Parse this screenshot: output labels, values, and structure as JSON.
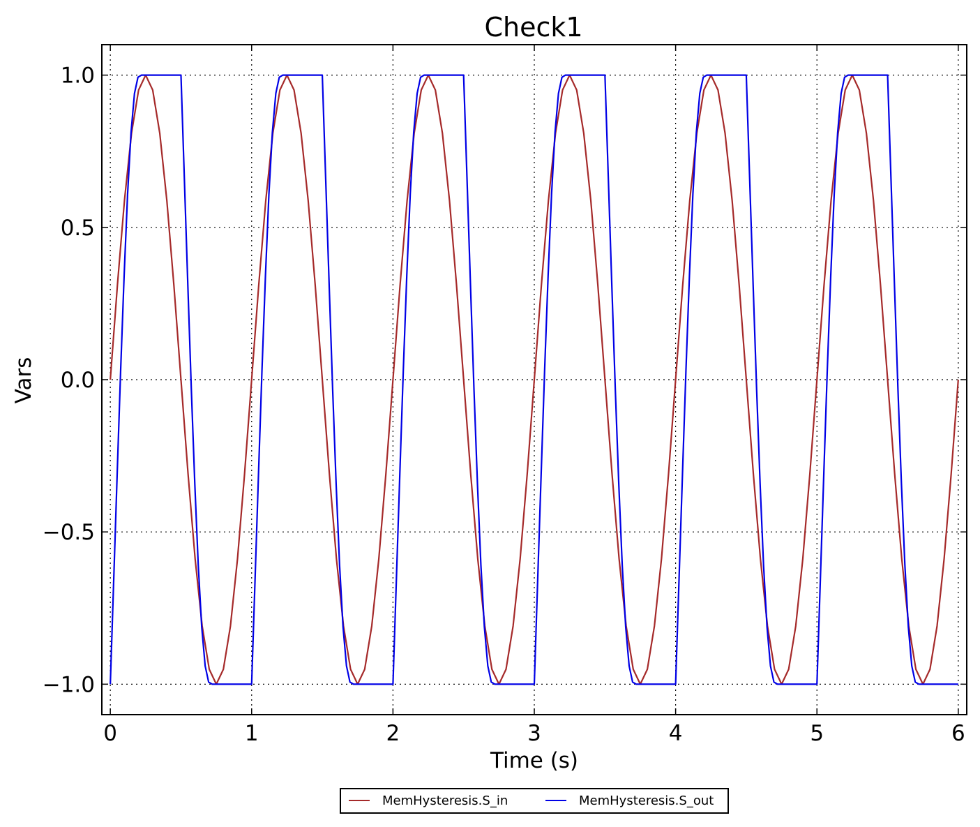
{
  "chart_data": {
    "type": "line",
    "title": "Check1",
    "xlabel": "Time (s)",
    "ylabel": "Vars",
    "xlim": [
      -0.06,
      6.06
    ],
    "ylim": [
      -1.1,
      1.1
    ],
    "xticks": [
      0,
      1,
      2,
      3,
      4,
      5,
      6
    ],
    "xtick_labels": [
      "0",
      "1",
      "2",
      "3",
      "4",
      "5",
      "6"
    ],
    "yticks": [
      1.0,
      0.5,
      0.0,
      -0.5,
      -1.0
    ],
    "ytick_labels": [
      "1.0",
      "0.5",
      "0.0",
      "−0.5",
      "−1.0"
    ],
    "grid": true,
    "legend_position": "bottom-center",
    "series": [
      {
        "name": "MemHysteresis.S_in",
        "color": "#a52a2a",
        "x": [
          0,
          0.05,
          0.1,
          0.15,
          0.2,
          0.25,
          0.3,
          0.35,
          0.4,
          0.45,
          0.5,
          0.55,
          0.6,
          0.65,
          0.7,
          0.75,
          0.8,
          0.85,
          0.9,
          0.95,
          1.0,
          1.05,
          1.1,
          1.15,
          1.2,
          1.25,
          1.3,
          1.35,
          1.4,
          1.45,
          1.5,
          1.55,
          1.6,
          1.65,
          1.7,
          1.75,
          1.8,
          1.85,
          1.9,
          1.95,
          2.0,
          2.05,
          2.1,
          2.15,
          2.2,
          2.25,
          2.3,
          2.35,
          2.4,
          2.45,
          2.5,
          2.55,
          2.6,
          2.65,
          2.7,
          2.75,
          2.8,
          2.85,
          2.9,
          2.95,
          3.0,
          3.05,
          3.1,
          3.15,
          3.2,
          3.25,
          3.3,
          3.35,
          3.4,
          3.45,
          3.5,
          3.55,
          3.6,
          3.65,
          3.7,
          3.75,
          3.8,
          3.85,
          3.9,
          3.95,
          4.0,
          4.05,
          4.1,
          4.15,
          4.2,
          4.25,
          4.3,
          4.35,
          4.4,
          4.45,
          4.5,
          4.55,
          4.6,
          4.65,
          4.7,
          4.75,
          4.8,
          4.85,
          4.9,
          4.95,
          5.0,
          5.05,
          5.1,
          5.15,
          5.2,
          5.25,
          5.3,
          5.35,
          5.4,
          5.45,
          5.5,
          5.55,
          5.6,
          5.65,
          5.7,
          5.75,
          5.8,
          5.85,
          5.9,
          5.95,
          6.0
        ],
        "y": [
          0.0,
          0.309,
          0.588,
          0.809,
          0.951,
          1.0,
          0.951,
          0.809,
          0.588,
          0.309,
          0.0,
          -0.309,
          -0.588,
          -0.809,
          -0.951,
          -1.0,
          -0.951,
          -0.809,
          -0.588,
          -0.309,
          0.0,
          0.309,
          0.588,
          0.809,
          0.951,
          1.0,
          0.951,
          0.809,
          0.588,
          0.309,
          0.0,
          -0.309,
          -0.588,
          -0.809,
          -0.951,
          -1.0,
          -0.951,
          -0.809,
          -0.588,
          -0.309,
          0.0,
          0.309,
          0.588,
          0.809,
          0.951,
          1.0,
          0.951,
          0.809,
          0.588,
          0.309,
          0.0,
          -0.309,
          -0.588,
          -0.809,
          -0.951,
          -1.0,
          -0.951,
          -0.809,
          -0.588,
          -0.309,
          0.0,
          0.309,
          0.588,
          0.809,
          0.951,
          1.0,
          0.951,
          0.809,
          0.588,
          0.309,
          0.0,
          -0.309,
          -0.588,
          -0.809,
          -0.951,
          -1.0,
          -0.951,
          -0.809,
          -0.588,
          -0.309,
          0.0,
          0.309,
          0.588,
          0.809,
          0.951,
          1.0,
          0.951,
          0.809,
          0.588,
          0.309,
          0.0,
          -0.309,
          -0.588,
          -0.809,
          -0.951,
          -1.0,
          -0.951,
          -0.809,
          -0.588,
          -0.309,
          0.0,
          0.309,
          0.588,
          0.809,
          0.951,
          1.0,
          0.951,
          0.809,
          0.588,
          0.309,
          0.0,
          -0.309,
          -0.588,
          -0.809,
          -0.951,
          -1.0,
          -0.951,
          -0.809,
          -0.588,
          -0.309,
          0.0
        ]
      },
      {
        "name": "MemHysteresis.S_out",
        "color": "#0000e6",
        "x": [
          0,
          0.0244,
          0.0489,
          0.0733,
          0.0978,
          0.1222,
          0.1467,
          0.1711,
          0.1956,
          0.22,
          0.5,
          0.5,
          0.5244,
          0.5489,
          0.5733,
          0.5978,
          0.6222,
          0.6467,
          0.6711,
          0.6956,
          0.72,
          1.0,
          1.0,
          1.0244,
          1.0489,
          1.0733,
          1.0978,
          1.1222,
          1.1467,
          1.1711,
          1.1956,
          1.22,
          1.5,
          1.5,
          1.5244,
          1.5489,
          1.5733,
          1.5978,
          1.6222,
          1.6467,
          1.6711,
          1.6956,
          1.72,
          2.0,
          2.0,
          2.0244,
          2.0489,
          2.0733,
          2.0978,
          2.1222,
          2.1467,
          2.1711,
          2.1956,
          2.22,
          2.5,
          2.5,
          2.5244,
          2.5489,
          2.5733,
          2.5978,
          2.6222,
          2.6467,
          2.6711,
          2.6956,
          2.72,
          3.0,
          3.0,
          3.0244,
          3.0489,
          3.0733,
          3.0978,
          3.1222,
          3.1467,
          3.1711,
          3.1956,
          3.22,
          3.5,
          3.5,
          3.5244,
          3.5489,
          3.5733,
          3.5978,
          3.6222,
          3.6467,
          3.6711,
          3.6956,
          3.72,
          4.0,
          4.0,
          4.0244,
          4.0489,
          4.0733,
          4.0978,
          4.1222,
          4.1467,
          4.1711,
          4.1956,
          4.22,
          4.5,
          4.5,
          4.5244,
          4.5489,
          4.5733,
          4.5978,
          4.6222,
          4.6467,
          4.6711,
          4.6956,
          4.72,
          5.0,
          5.0,
          5.0244,
          5.0489,
          5.0733,
          5.0978,
          5.1222,
          5.1467,
          5.1711,
          5.1956,
          5.22,
          5.5,
          5.5,
          5.5244,
          5.5489,
          5.5733,
          5.5978,
          5.6222,
          5.6467,
          5.6711,
          5.6956,
          5.72,
          6.0
        ],
        "y": [
          -1.0,
          -0.653,
          -0.305,
          0.033,
          0.342,
          0.609,
          0.812,
          0.94,
          0.993,
          1.0,
          1.0,
          1.0,
          0.653,
          0.305,
          -0.033,
          -0.342,
          -0.609,
          -0.812,
          -0.94,
          -0.993,
          -1.0,
          -1.0,
          -1.0,
          -0.653,
          -0.305,
          0.033,
          0.342,
          0.609,
          0.812,
          0.94,
          0.993,
          1.0,
          1.0,
          1.0,
          0.653,
          0.305,
          -0.033,
          -0.342,
          -0.609,
          -0.812,
          -0.94,
          -0.993,
          -1.0,
          -1.0,
          -1.0,
          -0.653,
          -0.305,
          0.033,
          0.342,
          0.609,
          0.812,
          0.94,
          0.993,
          1.0,
          1.0,
          1.0,
          0.653,
          0.305,
          -0.033,
          -0.342,
          -0.609,
          -0.812,
          -0.94,
          -0.993,
          -1.0,
          -1.0,
          -1.0,
          -0.653,
          -0.305,
          0.033,
          0.342,
          0.609,
          0.812,
          0.94,
          0.993,
          1.0,
          1.0,
          1.0,
          0.653,
          0.305,
          -0.033,
          -0.342,
          -0.609,
          -0.812,
          -0.94,
          -0.993,
          -1.0,
          -1.0,
          -1.0,
          -0.653,
          -0.305,
          0.033,
          0.342,
          0.609,
          0.812,
          0.94,
          0.993,
          1.0,
          1.0,
          1.0,
          0.653,
          0.305,
          -0.033,
          -0.342,
          -0.609,
          -0.812,
          -0.94,
          -0.993,
          -1.0,
          -1.0,
          -1.0,
          -0.653,
          -0.305,
          0.033,
          0.342,
          0.609,
          0.812,
          0.94,
          0.993,
          1.0,
          1.0,
          1.0,
          0.653,
          0.305,
          -0.033,
          -0.342,
          -0.609,
          -0.812,
          -0.94,
          -0.993,
          -1.0,
          -1.0
        ]
      }
    ]
  }
}
